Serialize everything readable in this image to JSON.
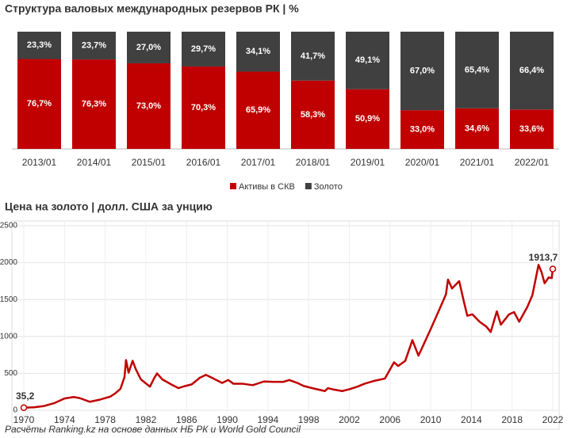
{
  "chart_data": [
    {
      "type": "bar",
      "stacked": true,
      "title": "Структура валовых международных резервов РК | %",
      "categories": [
        "2013/01",
        "2014/01",
        "2015/01",
        "2016/01",
        "2017/01",
        "2018/01",
        "2019/01",
        "2020/01",
        "2021/01",
        "2022/01"
      ],
      "ylim": [
        0,
        100
      ],
      "legend": "bottom",
      "series": [
        {
          "name": "Активы в СКВ",
          "color": "#c00000",
          "values": [
            76.7,
            76.3,
            73.0,
            70.3,
            65.9,
            58.3,
            50.9,
            33.0,
            34.6,
            33.6
          ],
          "value_labels": [
            "76,7%",
            "76,3%",
            "73,0%",
            "70,3%",
            "65,9%",
            "58,3%",
            "50,9%",
            "33,0%",
            "34,6%",
            "33,6%"
          ]
        },
        {
          "name": "Золото",
          "color": "#404040",
          "values": [
            23.3,
            23.7,
            27.0,
            29.7,
            34.1,
            41.7,
            49.1,
            67.0,
            65.4,
            66.4
          ],
          "value_labels": [
            "23,3%",
            "23,7%",
            "27,0%",
            "29,7%",
            "34,1%",
            "41,7%",
            "49,1%",
            "67,0%",
            "65,4%",
            "66,4%"
          ]
        }
      ]
    },
    {
      "type": "line",
      "title": "Цена на золото | долл. США за унцию",
      "color": "#c00000",
      "grid": true,
      "xlim": [
        1970,
        2022
      ],
      "xticks": [
        1970,
        1974,
        1978,
        1982,
        1986,
        1990,
        1994,
        1998,
        2002,
        2006,
        2010,
        2014,
        2018,
        2022
      ],
      "ylim": [
        0,
        2500
      ],
      "yticks": [
        0,
        500,
        1000,
        1500,
        2000,
        2500
      ],
      "x": [
        1970,
        1971,
        1972,
        1973,
        1974,
        1974.9,
        1975.5,
        1976.5,
        1977.5,
        1978.5,
        1979,
        1979.5,
        1979.9,
        1980.05,
        1980.3,
        1980.7,
        1981,
        1981.5,
        1982.4,
        1982.8,
        1983.1,
        1983.6,
        1984.5,
        1985.2,
        1985.9,
        1986.5,
        1987.3,
        1987.9,
        1988.5,
        1989.5,
        1990.1,
        1990.6,
        1991.5,
        1992.5,
        1993.6,
        1994.5,
        1995.5,
        1996.1,
        1996.9,
        1997.5,
        1998.5,
        1999.6,
        1999.9,
        2000.5,
        2001.3,
        2002,
        2002.8,
        2003.5,
        2004.5,
        2005.5,
        2006.4,
        2006.8,
        2007.5,
        2008.2,
        2008.8,
        2009.5,
        2010,
        2010.9,
        2011.5,
        2011.7,
        2012.1,
        2012.8,
        2013.3,
        2013.6,
        2014.1,
        2014.8,
        2015.5,
        2015.9,
        2016.5,
        2016.9,
        2017.7,
        2018.2,
        2018.7,
        2019.5,
        2020,
        2020.6,
        2020.9,
        2021.2,
        2021.6,
        2021.9,
        2022
      ],
      "values": [
        35.2,
        40,
        58,
        97,
        160,
        180,
        165,
        115,
        145,
        185,
        230,
        290,
        450,
        680,
        510,
        670,
        560,
        420,
        320,
        430,
        500,
        420,
        350,
        300,
        330,
        350,
        440,
        480,
        440,
        370,
        410,
        360,
        360,
        340,
        390,
        385,
        385,
        410,
        370,
        330,
        295,
        260,
        300,
        280,
        260,
        285,
        320,
        360,
        400,
        430,
        650,
        600,
        670,
        950,
        740,
        950,
        1100,
        1380,
        1570,
        1770,
        1650,
        1750,
        1450,
        1280,
        1300,
        1200,
        1130,
        1060,
        1340,
        1160,
        1300,
        1330,
        1200,
        1400,
        1560,
        1970,
        1870,
        1720,
        1800,
        1790,
        1913.7
      ],
      "value_labels": [
        "35,2",
        null,
        null,
        null,
        null,
        null,
        null,
        null,
        null,
        null,
        null,
        null,
        null,
        null,
        null,
        null,
        null,
        null,
        null,
        null,
        null,
        null,
        null,
        null,
        null,
        null,
        null,
        null,
        null,
        null,
        null,
        null,
        null,
        null,
        null,
        null,
        null,
        null,
        null,
        null,
        null,
        null,
        null,
        null,
        null,
        null,
        null,
        null,
        null,
        null,
        null,
        null,
        null,
        null,
        null,
        null,
        null,
        null,
        null,
        null,
        null,
        null,
        null,
        null,
        null,
        null,
        null,
        null,
        null,
        null,
        null,
        null,
        null,
        null,
        null,
        null,
        null,
        null,
        null,
        null,
        "1913,7"
      ]
    }
  ],
  "footnote": "Расчёты Ranking.kz на основе данных НБ РК и World Gold Council"
}
